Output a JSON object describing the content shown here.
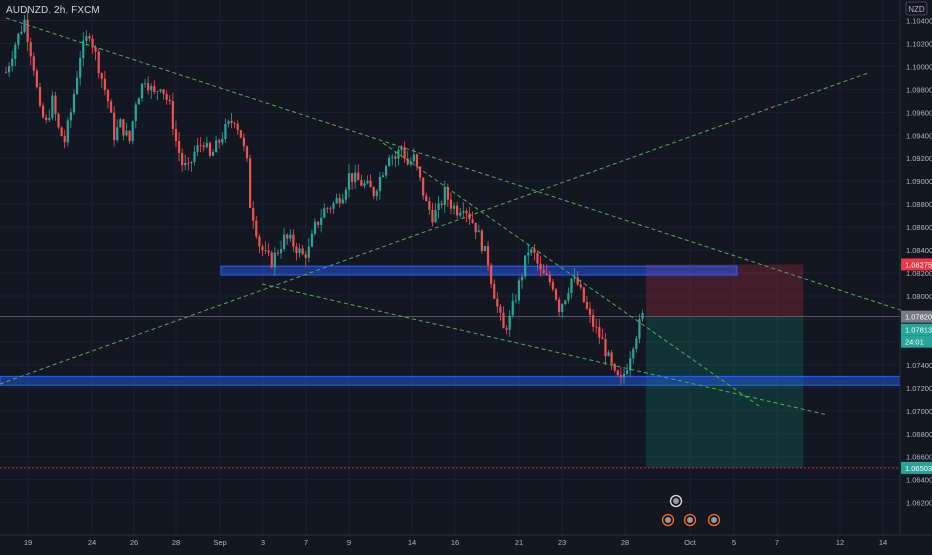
{
  "header": {
    "symbol": "AUDNZD",
    "timeframe": "2h",
    "exchange": "FXCM",
    "currency": "NZD"
  },
  "colors": {
    "background": "#131722",
    "grid": "#1c2030",
    "bull": "#26a69a",
    "bear": "#ef5350",
    "trendline": "#4caf50",
    "zone": "#2962ff",
    "stop_zone": "#f23645",
    "target_zone": "#089981",
    "axis_text": "#b2b5be"
  },
  "chart_data": {
    "type": "candlestick",
    "title": "",
    "y_axis": {
      "min": 1.061,
      "max": 1.105,
      "ticks": [
        "1.10400",
        "1.10200",
        "1.10000",
        "1.09800",
        "1.09600",
        "1.09400",
        "1.09200",
        "1.09000",
        "1.08800",
        "1.08600",
        "1.08400",
        "1.08200",
        "1.08000",
        "1.07800",
        "1.07600",
        "1.07400",
        "1.07200",
        "1.07000",
        "1.06800",
        "1.06600",
        "1.06400",
        "1.06200"
      ],
      "scale": "linear"
    },
    "x_axis": {
      "labels": [
        "19",
        "24",
        "26",
        "28",
        "Sep",
        "3",
        "7",
        "9",
        "14",
        "16",
        "21",
        "23",
        "28",
        "Oct",
        "5",
        "7",
        "12",
        "14"
      ]
    },
    "price_labels": [
      {
        "value": "1.08275",
        "kind": "stop"
      },
      {
        "value": "1.07820",
        "kind": "entry"
      },
      {
        "value": "1.07813",
        "kind": "last"
      },
      {
        "value": "24:01",
        "kind": "countdown"
      },
      {
        "value": "1.06503",
        "kind": "target"
      }
    ],
    "price_path": [
      [
        0,
        1.0995
      ],
      [
        3,
        1.102
      ],
      [
        6,
        1.104
      ],
      [
        9,
        1.1
      ],
      [
        11,
        1.096
      ],
      [
        13,
        1.095
      ],
      [
        15,
        1.097
      ],
      [
        17,
        1.0945
      ],
      [
        19,
        1.0935
      ],
      [
        21,
        1.096
      ],
      [
        24,
        1.101
      ],
      [
        27,
        1.103
      ],
      [
        30,
        1.1
      ],
      [
        33,
        1.097
      ],
      [
        35,
        1.094
      ],
      [
        37,
        1.095
      ],
      [
        40,
        1.0935
      ],
      [
        42,
        1.097
      ],
      [
        45,
        1.099
      ],
      [
        48,
        1.0975
      ],
      [
        50,
        1.0985
      ],
      [
        53,
        1.0965
      ],
      [
        55,
        1.0935
      ],
      [
        57,
        1.0915
      ],
      [
        59,
        1.091
      ],
      [
        61,
        1.0925
      ],
      [
        64,
        1.0935
      ],
      [
        66,
        1.092
      ],
      [
        68,
        1.093
      ],
      [
        71,
        1.0945
      ],
      [
        74,
        1.0955
      ],
      [
        76,
        1.094
      ],
      [
        78,
        1.0915
      ],
      [
        79,
        1.088
      ],
      [
        80,
        1.087
      ],
      [
        82,
        1.0845
      ],
      [
        84,
        1.0835
      ],
      [
        86,
        1.083
      ],
      [
        88,
        1.084
      ],
      [
        90,
        1.085
      ],
      [
        92,
        1.0848
      ],
      [
        94,
        1.0842
      ],
      [
        96,
        1.0835
      ],
      [
        98,
        1.084
      ],
      [
        100,
        1.086
      ],
      [
        103,
        1.0875
      ],
      [
        106,
        1.088
      ],
      [
        109,
        1.089
      ],
      [
        111,
        1.0905
      ],
      [
        114,
        1.09
      ],
      [
        117,
        1.0895
      ],
      [
        119,
        1.089
      ],
      [
        122,
        1.091
      ],
      [
        124,
        1.0925
      ],
      [
        126,
        1.092
      ],
      [
        128,
        1.093
      ],
      [
        130,
        1.0915
      ],
      [
        132,
        1.092
      ],
      [
        134,
        1.09
      ],
      [
        136,
        1.088
      ],
      [
        138,
        1.087
      ],
      [
        140,
        1.0875
      ],
      [
        142,
        1.089
      ],
      [
        144,
        1.088
      ],
      [
        146,
        1.0875
      ],
      [
        148,
        1.088
      ],
      [
        150,
        1.087
      ],
      [
        152,
        1.086
      ],
      [
        154,
        1.0845
      ],
      [
        156,
        1.083
      ],
      [
        157,
        1.0815
      ],
      [
        159,
        1.079
      ],
      [
        161,
        1.077
      ],
      [
        163,
        1.078
      ],
      [
        165,
        1.08
      ],
      [
        167,
        1.082
      ],
      [
        169,
        1.084
      ],
      [
        171,
        1.0835
      ],
      [
        173,
        1.082
      ],
      [
        175,
        1.0815
      ],
      [
        177,
        1.081
      ],
      [
        179,
        1.079
      ],
      [
        181,
        1.08
      ],
      [
        183,
        1.0815
      ],
      [
        185,
        1.081
      ],
      [
        187,
        1.0795
      ],
      [
        189,
        1.078
      ],
      [
        191,
        1.077
      ],
      [
        193,
        1.076
      ],
      [
        195,
        1.0745
      ],
      [
        197,
        1.073
      ],
      [
        199,
        1.0725
      ],
      [
        201,
        1.074
      ],
      [
        203,
        1.076
      ],
      [
        205,
        1.0775
      ],
      [
        206,
        1.0782
      ]
    ],
    "annotations": {
      "trendlines": [
        {
          "p1": [
            0,
            1.104
          ],
          "p2": [
            238,
            1.078
          ]
        },
        {
          "p1": [
            0,
            1.073
          ],
          "p2": [
            253,
            1.099
          ]
        },
        {
          "p1": [
            121,
            1.094
          ],
          "p2": [
            228,
            1.0715
          ]
        },
        {
          "p1": [
            65,
            1.081
          ],
          "p2": [
            243,
            1.0705
          ]
        }
      ],
      "zones": [
        {
          "x1": 64,
          "x2": 224,
          "y1": 1.0826,
          "y2": 1.082
        },
        {
          "x1": 0,
          "x2": 264,
          "y1": 1.073,
          "y2": 1.0724
        }
      ],
      "position": {
        "x1": 189,
        "x2": 236,
        "entry": 1.0782,
        "stop": 1.08275,
        "target": 1.06503
      }
    }
  }
}
